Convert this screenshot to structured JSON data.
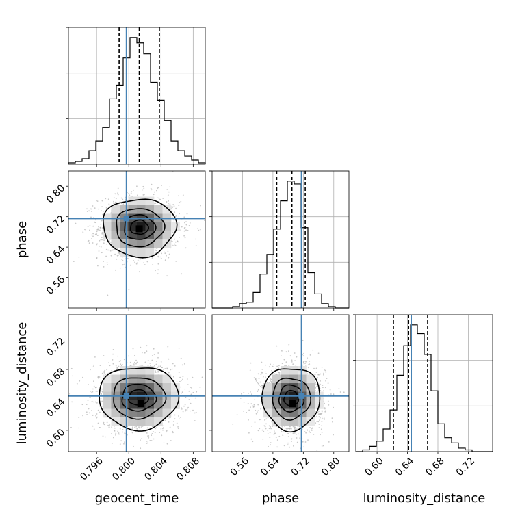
{
  "chart_data": {
    "type": "corner",
    "parameters": [
      {
        "name": "geocent_time",
        "label": "geocent_time",
        "range": [
          0.7925,
          0.8095
        ],
        "ticks": [
          0.796,
          0.8,
          0.804,
          0.808
        ],
        "tick_labels": [
          "0.796",
          "0.800",
          "0.804",
          "0.808"
        ],
        "truth": 0.7997,
        "quantiles": [
          0.7988,
          0.8013,
          0.8038
        ]
      },
      {
        "name": "phase",
        "label": "phase",
        "range": [
          0.48,
          0.84
        ],
        "ticks": [
          0.56,
          0.64,
          0.72,
          0.8
        ],
        "tick_labels": [
          "0.56",
          "0.64",
          "0.72",
          "0.80"
        ],
        "truth": 0.715,
        "quantiles": [
          0.65,
          0.69,
          0.725
        ]
      },
      {
        "name": "luminosity_distance",
        "label": "luminosity_distance",
        "range": [
          0.572,
          0.752
        ],
        "ticks": [
          0.6,
          0.64,
          0.68,
          0.72
        ],
        "tick_labels": [
          "0.60",
          "0.64",
          "0.68",
          "0.72"
        ],
        "truth": 0.645,
        "quantiles": [
          0.6215,
          0.6415,
          0.6665
        ]
      }
    ],
    "histograms": [
      {
        "param": "geocent_time",
        "bin_edges_start": 0.7925,
        "bin_width": 0.00085,
        "counts": [
          1,
          2,
          4,
          10,
          17,
          27,
          48,
          58,
          78,
          93,
          89,
          81,
          60,
          47,
          32,
          17,
          10,
          6,
          3,
          1
        ]
      },
      {
        "param": "phase",
        "bin_edges_start": 0.48,
        "bin_width": 0.018,
        "counts": [
          0,
          0,
          0,
          1,
          3,
          4,
          11,
          24,
          38,
          56,
          76,
          90,
          88,
          57,
          25,
          10,
          3,
          1,
          0,
          0
        ]
      },
      {
        "param": "luminosity_distance",
        "bin_edges_start": 0.572,
        "bin_width": 0.009,
        "counts": [
          0,
          1,
          3,
          6,
          13,
          24,
          44,
          61,
          73,
          68,
          56,
          35,
          16,
          8,
          5,
          2,
          1,
          0,
          0,
          0
        ]
      }
    ],
    "pairs": [
      {
        "x": "geocent_time",
        "y": "phase",
        "center": [
          0.8013,
          0.692
        ],
        "spread": [
          0.0022,
          0.037
        ],
        "peak": [
          0.8013,
          0.688
        ]
      },
      {
        "x": "geocent_time",
        "y": "luminosity_distance",
        "center": [
          0.8012,
          0.643
        ],
        "spread": [
          0.0024,
          0.02
        ],
        "peak": [
          0.8015,
          0.635
        ]
      },
      {
        "x": "phase",
        "y": "luminosity_distance",
        "center": [
          0.688,
          0.642
        ],
        "spread": [
          0.037,
          0.02
        ],
        "peak": [
          0.692,
          0.635
        ]
      }
    ],
    "contour_levels": [
      0.12,
      0.4,
      0.68,
      0.88
    ],
    "colors": {
      "truth": "#4682b4",
      "hist": "#000000",
      "quantile": "#000000",
      "points": "#b0b0b0"
    },
    "grid": true
  }
}
